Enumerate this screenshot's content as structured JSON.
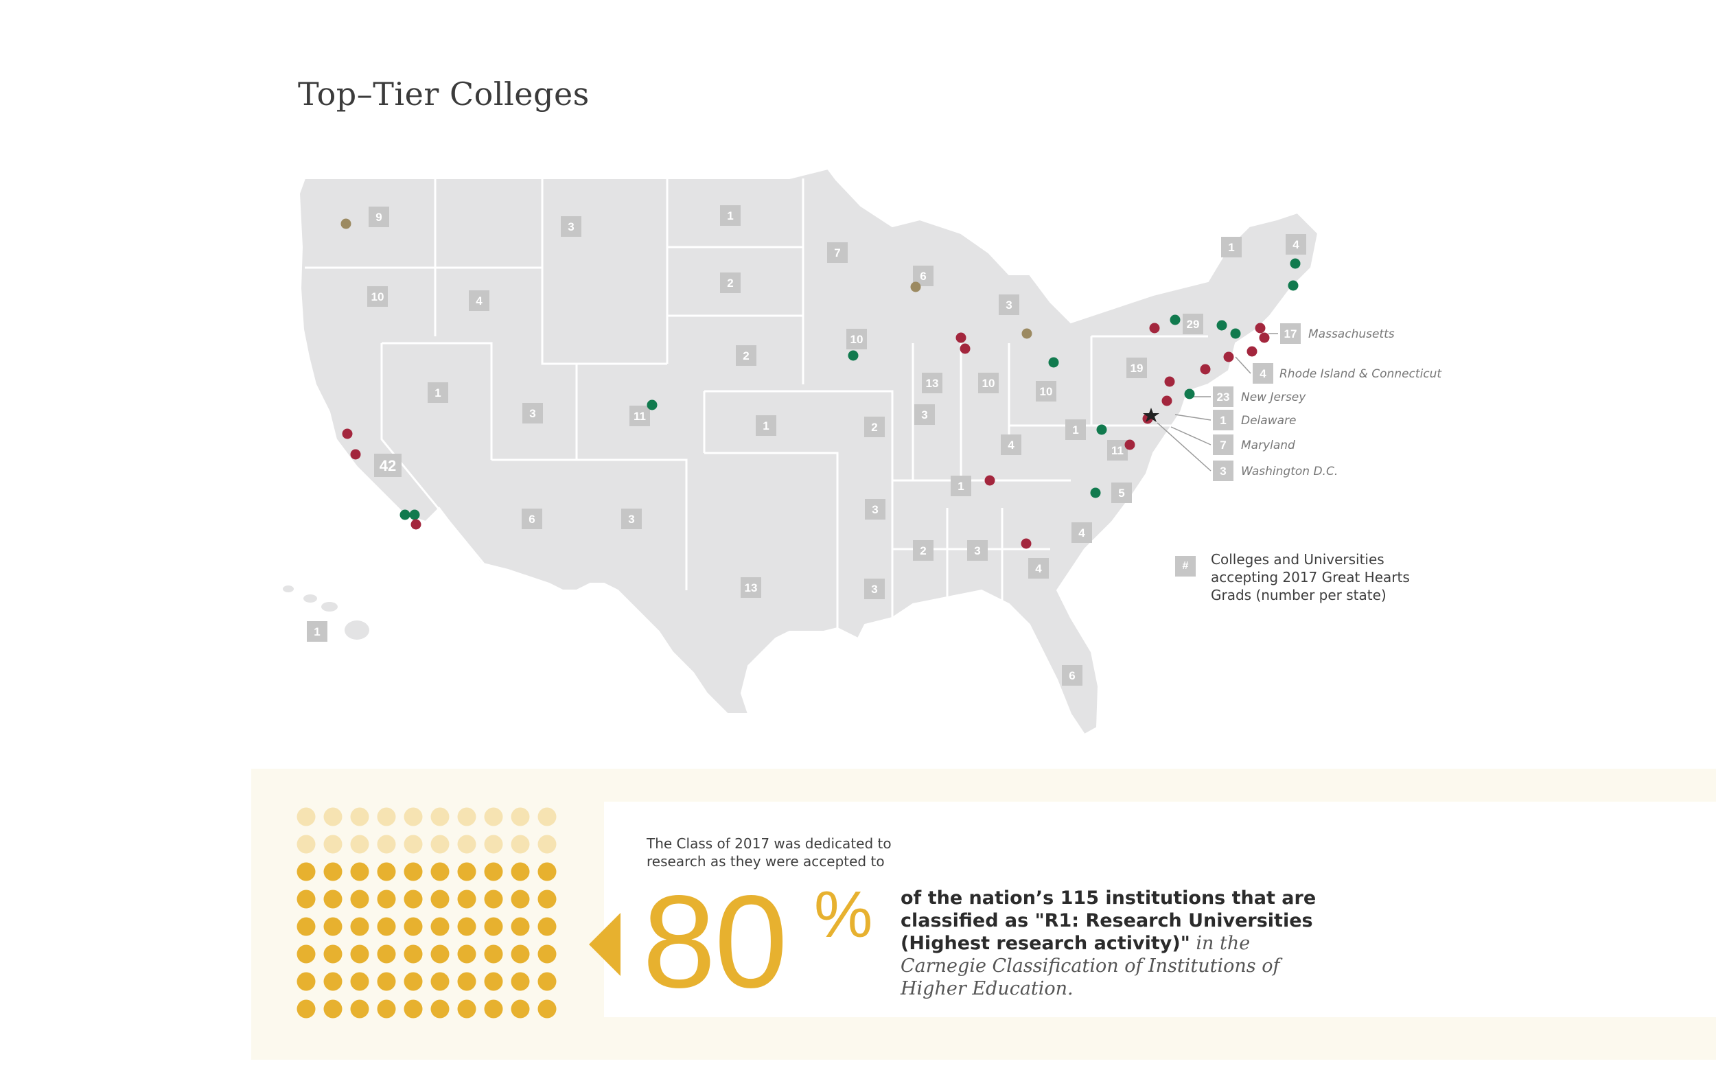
{
  "title": "Top–Tier Colleges",
  "colors": {
    "map_fill": "#e3e3e4",
    "badge": "#c6c6c6",
    "dot_green": "#117a4e",
    "dot_red": "#a3263d",
    "dot_tan": "#9c8a61",
    "accent_gold": "#e7b12f",
    "dot_light_gold": "#f6e3b2",
    "panel_bg": "#fcf9ee"
  },
  "state_counts": [
    {
      "state": "WA",
      "count": "9"
    },
    {
      "state": "OR",
      "count": "10"
    },
    {
      "state": "ID",
      "count": "4"
    },
    {
      "state": "MT",
      "count": "3"
    },
    {
      "state": "ND",
      "count": "1"
    },
    {
      "state": "MN",
      "count": "7"
    },
    {
      "state": "WI",
      "count": "6"
    },
    {
      "state": "MI",
      "count": "3"
    },
    {
      "state": "SD",
      "count": "2"
    },
    {
      "state": "NE",
      "count": "2"
    },
    {
      "state": "IA",
      "count": "10"
    },
    {
      "state": "NV",
      "count": "1"
    },
    {
      "state": "UT",
      "count": "3"
    },
    {
      "state": "CO",
      "count": "11"
    },
    {
      "state": "KS",
      "count": "1"
    },
    {
      "state": "MO",
      "count": "2"
    },
    {
      "state": "IL",
      "count": "13"
    },
    {
      "state": "IN",
      "count": "10"
    },
    {
      "state": "OH",
      "count": "10"
    },
    {
      "state": "PA",
      "count": "19"
    },
    {
      "state": "NY",
      "count": "29"
    },
    {
      "state": "CA",
      "count": "42"
    },
    {
      "state": "AZ",
      "count": "6"
    },
    {
      "state": "NM",
      "count": "3"
    },
    {
      "state": "TX",
      "count": "13"
    },
    {
      "state": "OK",
      "count": "3"
    },
    {
      "state": "AR",
      "count": "3"
    },
    {
      "state": "LA",
      "count": "3"
    },
    {
      "state": "MS",
      "count": "2"
    },
    {
      "state": "AL",
      "count": "3"
    },
    {
      "state": "GA",
      "count": "4"
    },
    {
      "state": "SC",
      "count": "4"
    },
    {
      "state": "NC",
      "count": "5"
    },
    {
      "state": "TN",
      "count": "1"
    },
    {
      "state": "KY",
      "count": "4"
    },
    {
      "state": "WV",
      "count": "1"
    },
    {
      "state": "VA",
      "count": "11"
    },
    {
      "state": "FL",
      "count": "6"
    },
    {
      "state": "HI",
      "count": "1"
    },
    {
      "state": "VT",
      "count": "1"
    },
    {
      "state": "ME",
      "count": "4"
    }
  ],
  "callouts": [
    {
      "count": "17",
      "label": "Massachusetts"
    },
    {
      "count": "4",
      "label": "Rhode Island & Connecticut"
    },
    {
      "count": "23",
      "label": "New Jersey"
    },
    {
      "count": "1",
      "label": "Delaware"
    },
    {
      "count": "7",
      "label": "Maryland"
    },
    {
      "count": "3",
      "label": "Washington D.C."
    }
  ],
  "legend": {
    "badge": "#",
    "text": "Colleges and Universities accepting 2017 Great Hearts Grads (number per state)"
  },
  "stat": {
    "intro": "The Class of 2017 was dedicated to research as they were accepted to",
    "number": "80",
    "percent_sign": "%",
    "value_percent": 80,
    "desc_bold": "of the nation’s 115 institutions that are classified as \"R1: Research Universities (Highest research activity)\"",
    "desc_italic": "in the Carnegie Classification of Institutions of Higher Education."
  }
}
